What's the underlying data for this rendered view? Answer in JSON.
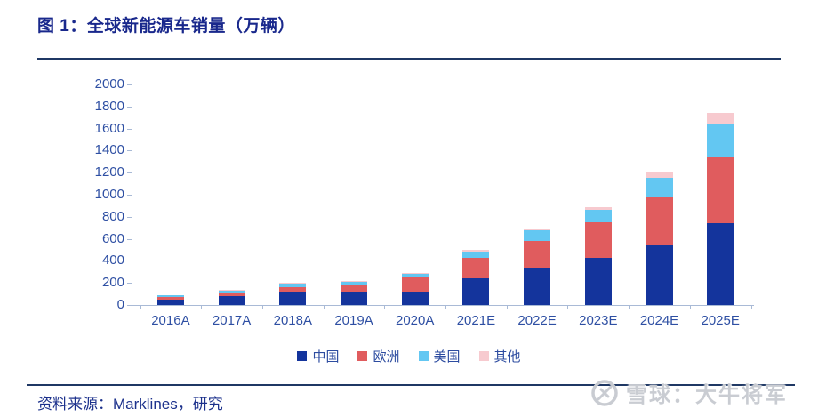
{
  "header": {
    "title": "图 1：全球新能源车销量（万辆）"
  },
  "footer": {
    "source": "资料来源：Marklines，研究"
  },
  "watermark": {
    "brand": "雪球：大牛将军",
    "logo": "xueqiu-circle-logo"
  },
  "chart_data": {
    "type": "bar",
    "stacked": true,
    "title": "全球新能源车销量（万辆）",
    "xlabel": "",
    "ylabel": "",
    "unit": "万辆",
    "categories": [
      "2016A",
      "2017A",
      "2018A",
      "2019A",
      "2020A",
      "2021E",
      "2022E",
      "2023E",
      "2024E",
      "2025E"
    ],
    "series": [
      {
        "name": "中国",
        "color": "#14349c",
        "values": [
          50,
          80,
          125,
          120,
          120,
          240,
          340,
          430,
          550,
          740
        ]
      },
      {
        "name": "欧洲",
        "color": "#e05c5e",
        "values": [
          20,
          30,
          35,
          55,
          130,
          190,
          240,
          320,
          430,
          600
        ]
      },
      {
        "name": "美国",
        "color": "#63c7f2",
        "values": [
          15,
          20,
          35,
          35,
          30,
          55,
          100,
          110,
          170,
          300
        ]
      },
      {
        "name": "其他",
        "color": "#f7cacf",
        "values": [
          5,
          5,
          5,
          10,
          10,
          15,
          10,
          25,
          50,
          100
        ]
      }
    ],
    "totals": [
      90,
      135,
      200,
      220,
      290,
      500,
      690,
      885,
      1200,
      1740
    ],
    "ylim": [
      0,
      2000
    ],
    "ytick_step": 200,
    "grid": false,
    "legend_position": "bottom",
    "axis_color": "#a9bad6",
    "label_color": "#2e4fa3"
  }
}
